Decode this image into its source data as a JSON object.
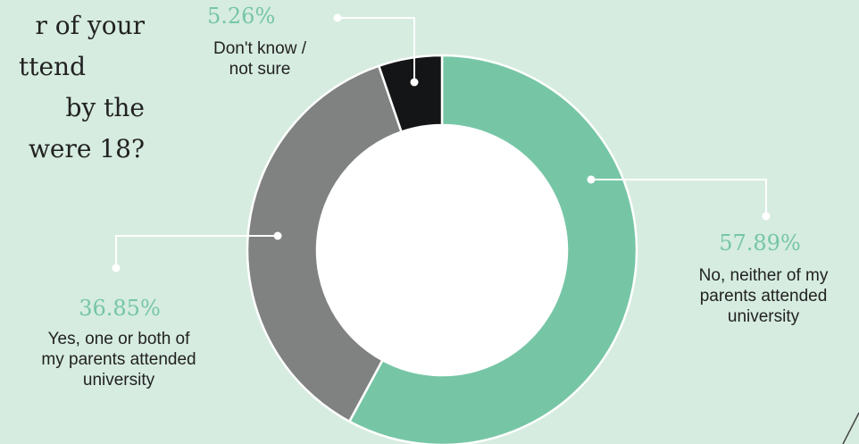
{
  "question": {
    "lines": [
      "r of your",
      "ttend",
      "by the",
      "were 18?"
    ]
  },
  "colors": {
    "background": "#d6ece0",
    "accent": "#76c6a6",
    "no": "#76c6a6",
    "yes": "#808281",
    "dont_know": "#141516",
    "connector": "#ffffff"
  },
  "chart_data": {
    "type": "pie",
    "variant": "donut",
    "slices": [
      {
        "key": "no",
        "value": 57.89,
        "percent_label": "57.89%",
        "label_lines": [
          "No, neither of my",
          "parents attended",
          "university"
        ]
      },
      {
        "key": "yes",
        "value": 36.85,
        "percent_label": "36.85%",
        "label_lines": [
          "Yes, one or both of",
          "my parents attended",
          "university"
        ]
      },
      {
        "key": "dont_know",
        "value": 5.26,
        "percent_label": "5.26%",
        "label_lines": [
          "Don't know /",
          "not sure"
        ]
      }
    ]
  }
}
